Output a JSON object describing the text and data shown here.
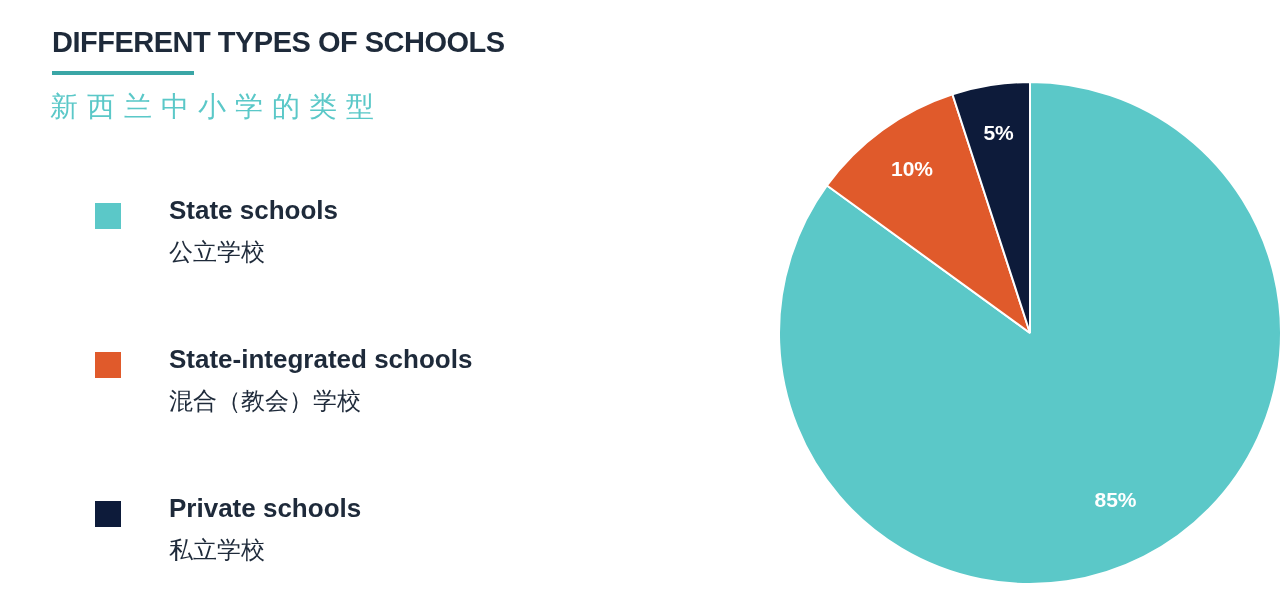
{
  "chart_data": {
    "type": "pie",
    "title": "DIFFERENT TYPES OF SCHOOLS",
    "subtitle": "新西兰中小学的类型",
    "categories": [
      "State schools\n公立学校",
      "State-integrated schools\n混合（教会）学校",
      "Private schools\n私立学校"
    ],
    "values": [
      85,
      10,
      5
    ],
    "colors": [
      "#5bc8c8",
      "#e05a2b",
      "#0d1b3a"
    ],
    "value_labels": [
      "85%",
      "10%",
      "5%"
    ],
    "legend": "left"
  }
}
